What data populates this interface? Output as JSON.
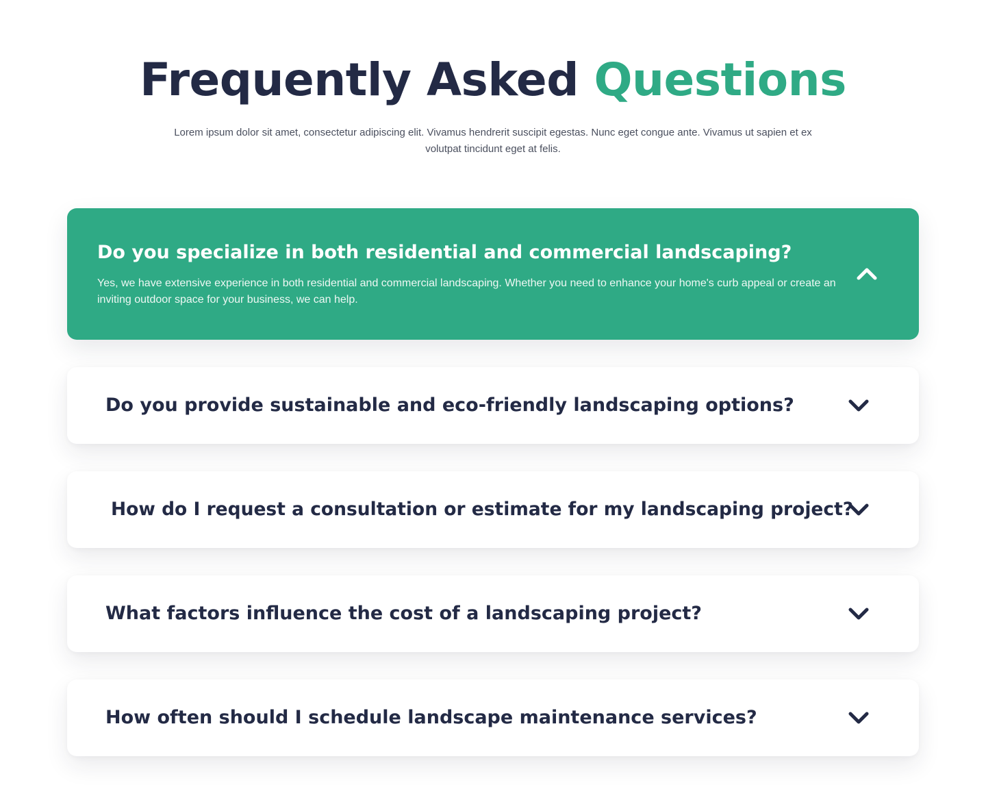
{
  "header": {
    "title_main": "Frequently Asked",
    "title_accent": "Questions",
    "subtitle": "Lorem ipsum dolor sit amet, consectetur adipiscing elit. Vivamus hendrerit suscipit egestas. Nunc eget congue ante. Vivamus ut sapien et ex volutpat tincidunt eget at felis."
  },
  "colors": {
    "accent": "#2faa85",
    "heading": "#232a45",
    "body_text": "#4a4f5e",
    "card_background": "#ffffff"
  },
  "faq": [
    {
      "question": "Do you specialize in both residential and commercial landscaping?",
      "answer": "Yes, we have extensive experience in both residential and commercial landscaping. Whether you need to enhance your home's curb appeal or create an inviting outdoor space for your business, we can help.",
      "expanded": true,
      "icon": "chevron-up-icon"
    },
    {
      "question": "Do you provide sustainable and eco-friendly landscaping options?",
      "expanded": false,
      "icon": "chevron-down-icon"
    },
    {
      "question": "How do I request a consultation or estimate for my landscaping project?",
      "expanded": false,
      "icon": "chevron-down-icon"
    },
    {
      "question": "What factors influence the cost of a landscaping project?",
      "expanded": false,
      "icon": "chevron-down-icon"
    },
    {
      "question": "How often should I schedule landscape maintenance services?",
      "expanded": false,
      "icon": "chevron-down-icon"
    }
  ]
}
